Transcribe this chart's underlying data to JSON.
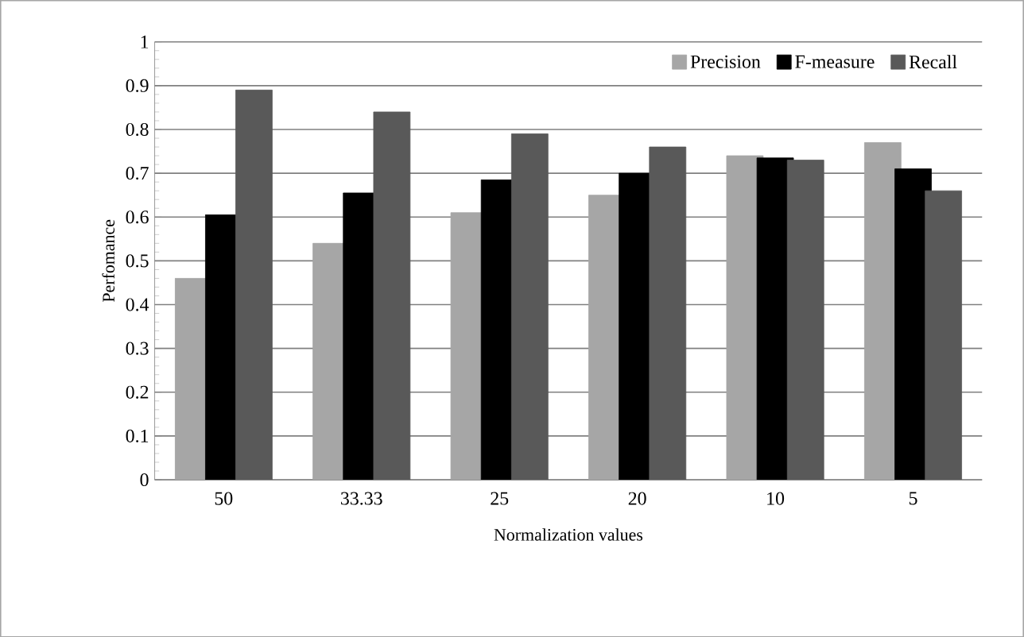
{
  "chart_data": {
    "type": "bar",
    "xlabel": "Normalization values",
    "ylabel": "Perfomance",
    "categories": [
      "50",
      "33.33",
      "25",
      "20",
      "10",
      "5"
    ],
    "series": [
      {
        "name": "Precision",
        "color": "#a6a6a6",
        "values": [
          0.46,
          0.54,
          0.61,
          0.65,
          0.74,
          0.77
        ]
      },
      {
        "name": "F-measure",
        "color": "#000000",
        "values": [
          0.605,
          0.655,
          0.685,
          0.7,
          0.735,
          0.71
        ]
      },
      {
        "name": "Recall",
        "color": "#595959",
        "values": [
          0.89,
          0.84,
          0.79,
          0.76,
          0.73,
          0.66
        ]
      }
    ],
    "ylim": [
      0,
      1
    ],
    "yticks": [
      0,
      0.1,
      0.2,
      0.3,
      0.4,
      0.5,
      0.6,
      0.7,
      0.8,
      0.9,
      1
    ],
    "grid": "y",
    "legend": "top right"
  }
}
